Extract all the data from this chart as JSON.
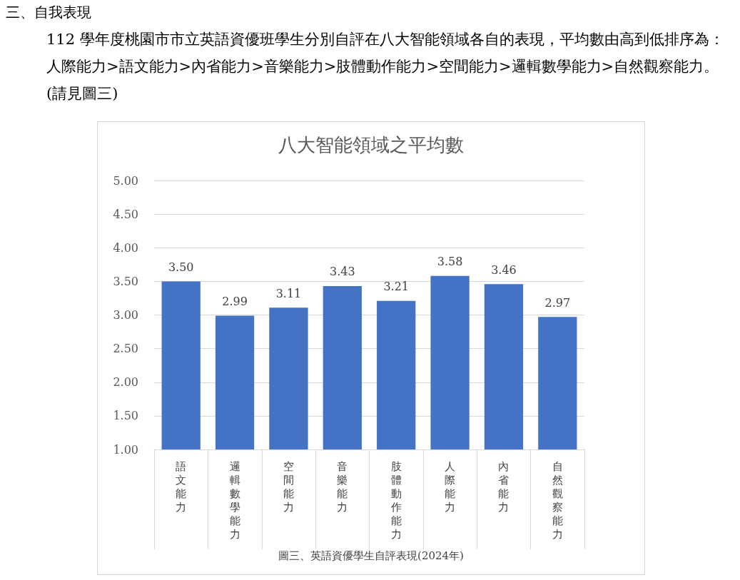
{
  "chart_data": {
    "type": "bar",
    "title": "八大智能領域之平均數",
    "xlabel": "圖三、英語資優學生自評表現(2024年)",
    "annotations": [
      "三、自我表現",
      "112 學年度桃園市市立英語資優班學生分別自評在八大智能領域各自的表現，平均數由高到低排序為：人際能力>語文能力>內省能力>音樂能力>肢體動作能力>空間能力>邏輯數學能力>自然觀察能力。(請見圖三)"
    ],
    "categories": [
      "語文能力",
      "邏輯數學能力",
      "空間能力",
      "音樂能力",
      "肢體動作能力",
      "人際能力",
      "內省能力",
      "自然觀察能力"
    ],
    "values": [
      3.5,
      2.99,
      3.11,
      3.43,
      3.21,
      3.58,
      3.46,
      2.97
    ],
    "value_labels": [
      "3.50",
      "2.99",
      "3.11",
      "3.43",
      "3.21",
      "3.58",
      "3.46",
      "2.97"
    ],
    "color": "#4472c4",
    "ylim": [
      1,
      5
    ],
    "yticks": [
      {
        "value": 1,
        "label": "1.00"
      },
      {
        "value": 1.5,
        "label": "1.50"
      },
      {
        "value": 2,
        "label": "2.00"
      },
      {
        "value": 2.5,
        "label": "2.50"
      },
      {
        "value": 3,
        "label": "3.00"
      },
      {
        "value": 3.5,
        "label": "3.50"
      },
      {
        "value": 4,
        "label": "4.00"
      },
      {
        "value": 4.5,
        "label": "4.50"
      },
      {
        "value": 5,
        "label": "5.00"
      }
    ],
    "grid": "y"
  }
}
